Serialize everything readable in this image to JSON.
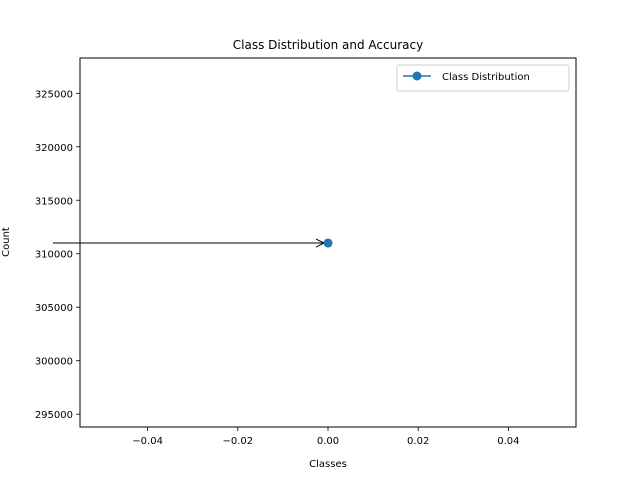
{
  "chart_data": {
    "type": "line",
    "title": "Class Distribution and Accuracy",
    "xlabel": "Classes",
    "ylabel": "Count",
    "xlim": [
      -0.055,
      0.055
    ],
    "ylim": [
      293800,
      328300
    ],
    "xticks": [
      -0.04,
      -0.02,
      0.0,
      0.02,
      0.04
    ],
    "xtick_labels": [
      "−0.04",
      "−0.02",
      "0.00",
      "0.02",
      "0.04"
    ],
    "yticks": [
      295000,
      300000,
      305000,
      310000,
      315000,
      320000,
      325000
    ],
    "ytick_labels": [
      "295000",
      "300000",
      "305000",
      "310000",
      "315000",
      "320000",
      "325000"
    ],
    "series": [
      {
        "name": "Class Distribution",
        "color": "#1f77b4",
        "marker": "circle",
        "x": [
          0
        ],
        "y": [
          311000
        ]
      }
    ],
    "annotations": [
      {
        "type": "arrow",
        "from": [
          -0.061,
          311000
        ],
        "to": [
          0,
          311000
        ],
        "color": "#000000"
      }
    ],
    "legend": {
      "placement": "top-right"
    },
    "grid": false
  }
}
